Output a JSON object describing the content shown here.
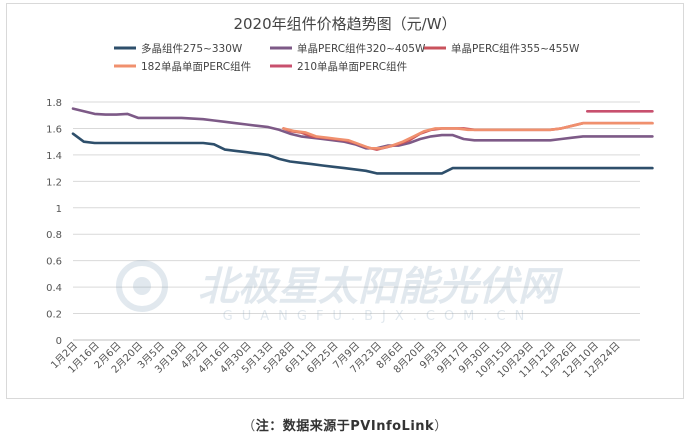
{
  "chart_data": {
    "type": "line",
    "title": "2020年组件价格趋势图（元/W）",
    "ylim": [
      0,
      1.8
    ],
    "yticks": [
      0,
      0.2,
      0.4,
      0.6,
      0.8,
      1,
      1.2,
      1.4,
      1.6,
      1.8
    ],
    "categories": [
      "1月2日",
      "1月16日",
      "2月6日",
      "2月20日",
      "3月5日",
      "3月19日",
      "4月2日",
      "4月16日",
      "4月30日",
      "5月13日",
      "5月28日",
      "6月11日",
      "6月25日",
      "7月9日",
      "7月23日",
      "8月6日",
      "8月20日",
      "9月3日",
      "9月17日",
      "9月30日",
      "10月15日",
      "10月29日",
      "11月12日",
      "11月26日",
      "12月10日",
      "12月24日"
    ],
    "grid": true,
    "legend_position": "top",
    "series": [
      {
        "name": "多晶组件275~330W",
        "color": "#2e4f6b",
        "points": [
          [
            0,
            1.56
          ],
          [
            0.5,
            1.5
          ],
          [
            1,
            1.49
          ],
          [
            2,
            1.49
          ],
          [
            3,
            1.49
          ],
          [
            4,
            1.49
          ],
          [
            5,
            1.49
          ],
          [
            6,
            1.49
          ],
          [
            6.5,
            1.48
          ],
          [
            7,
            1.44
          ],
          [
            7.5,
            1.43
          ],
          [
            8,
            1.42
          ],
          [
            8.5,
            1.41
          ],
          [
            9,
            1.4
          ],
          [
            9.5,
            1.37
          ],
          [
            10,
            1.35
          ],
          [
            10.5,
            1.34
          ],
          [
            11,
            1.33
          ],
          [
            11.5,
            1.32
          ],
          [
            12,
            1.31
          ],
          [
            12.5,
            1.3
          ],
          [
            13,
            1.29
          ],
          [
            13.5,
            1.28
          ],
          [
            14,
            1.26
          ],
          [
            15,
            1.26
          ],
          [
            16,
            1.26
          ],
          [
            17,
            1.26
          ],
          [
            17.5,
            1.3
          ],
          [
            18,
            1.3
          ],
          [
            19,
            1.3
          ],
          [
            20,
            1.3
          ],
          [
            21,
            1.3
          ],
          [
            22,
            1.3
          ],
          [
            23,
            1.3
          ],
          [
            24,
            1.3
          ],
          [
            25,
            1.3
          ],
          [
            26.7,
            1.3
          ]
        ]
      },
      {
        "name": "单晶PERC组件320~405W",
        "color": "#7d5a87",
        "points": [
          [
            0,
            1.75
          ],
          [
            0.5,
            1.73
          ],
          [
            1,
            1.71
          ],
          [
            1.5,
            1.705
          ],
          [
            2,
            1.705
          ],
          [
            2.5,
            1.71
          ],
          [
            3,
            1.68
          ],
          [
            3.5,
            1.68
          ],
          [
            4,
            1.68
          ],
          [
            5,
            1.68
          ],
          [
            6,
            1.67
          ],
          [
            6.5,
            1.66
          ],
          [
            7,
            1.65
          ],
          [
            7.5,
            1.64
          ],
          [
            8,
            1.63
          ],
          [
            8.5,
            1.62
          ],
          [
            9,
            1.61
          ],
          [
            9.5,
            1.59
          ],
          [
            10,
            1.56
          ],
          [
            10.5,
            1.54
          ],
          [
            11,
            1.53
          ],
          [
            11.5,
            1.52
          ],
          [
            12,
            1.51
          ],
          [
            12.5,
            1.5
          ],
          [
            13,
            1.48
          ],
          [
            13.5,
            1.45
          ],
          [
            14,
            1.45
          ],
          [
            14.5,
            1.47
          ],
          [
            15,
            1.47
          ],
          [
            15.5,
            1.49
          ],
          [
            16,
            1.52
          ],
          [
            16.5,
            1.54
          ],
          [
            17,
            1.55
          ],
          [
            17.5,
            1.55
          ],
          [
            18,
            1.52
          ],
          [
            18.5,
            1.51
          ],
          [
            19,
            1.51
          ],
          [
            20,
            1.51
          ],
          [
            21,
            1.51
          ],
          [
            22,
            1.51
          ],
          [
            22.5,
            1.52
          ],
          [
            23,
            1.53
          ],
          [
            23.5,
            1.54
          ],
          [
            24,
            1.54
          ],
          [
            25,
            1.54
          ],
          [
            26.7,
            1.54
          ]
        ]
      },
      {
        "name": "单晶PERC组件355~455W",
        "color": "#c9525c",
        "points": [
          [
            9.7,
            1.6
          ],
          [
            10,
            1.58
          ],
          [
            10.5,
            1.57
          ],
          [
            11,
            1.54
          ],
          [
            11.5,
            1.53
          ],
          [
            12,
            1.52
          ],
          [
            12.5,
            1.51
          ],
          [
            13,
            1.49
          ],
          [
            13.5,
            1.46
          ],
          [
            14,
            1.44
          ],
          [
            14.5,
            1.46
          ],
          [
            15,
            1.48
          ],
          [
            15.5,
            1.51
          ],
          [
            16,
            1.56
          ],
          [
            16.5,
            1.59
          ],
          [
            17,
            1.6
          ],
          [
            17.5,
            1.6
          ],
          [
            18,
            1.6
          ],
          [
            18.5,
            1.59
          ],
          [
            19,
            1.59
          ],
          [
            20,
            1.59
          ],
          [
            21,
            1.59
          ],
          [
            22,
            1.59
          ],
          [
            22.5,
            1.6
          ],
          [
            23,
            1.62
          ],
          [
            23.5,
            1.64
          ],
          [
            24,
            1.64
          ],
          [
            25,
            1.64
          ],
          [
            26.7,
            1.64
          ]
        ]
      },
      {
        "name": "182单晶单面PERC组件",
        "color": "#f0906e",
        "points": [
          [
            9.7,
            1.6
          ],
          [
            10.2,
            1.58
          ],
          [
            10.7,
            1.57
          ],
          [
            11.2,
            1.54
          ],
          [
            11.7,
            1.53
          ],
          [
            12.2,
            1.52
          ],
          [
            12.7,
            1.51
          ],
          [
            13.2,
            1.48
          ],
          [
            13.7,
            1.45
          ],
          [
            14.2,
            1.45
          ],
          [
            14.7,
            1.47
          ],
          [
            15.2,
            1.5
          ],
          [
            15.7,
            1.54
          ],
          [
            16.2,
            1.58
          ],
          [
            16.7,
            1.6
          ],
          [
            17.2,
            1.6
          ],
          [
            17.7,
            1.6
          ],
          [
            18.2,
            1.59
          ],
          [
            19,
            1.59
          ],
          [
            20,
            1.59
          ],
          [
            21,
            1.59
          ],
          [
            22,
            1.59
          ],
          [
            22.5,
            1.6
          ],
          [
            23,
            1.62
          ],
          [
            23.5,
            1.64
          ],
          [
            24,
            1.64
          ],
          [
            25,
            1.64
          ],
          [
            26.7,
            1.64
          ]
        ]
      },
      {
        "name": "210单晶单面PERC组件",
        "color": "#c8506e",
        "points": [
          [
            23.7,
            1.73
          ],
          [
            24.5,
            1.73
          ],
          [
            25.5,
            1.73
          ],
          [
            26.7,
            1.73
          ]
        ]
      }
    ]
  },
  "watermark": {
    "main": "北极星太阳能光伏网",
    "sub": "GUANGFU.BJX.COM.CN"
  },
  "caption": {
    "open": "（",
    "text": "注：数据来源于PVInfoLink",
    "close": "）"
  }
}
